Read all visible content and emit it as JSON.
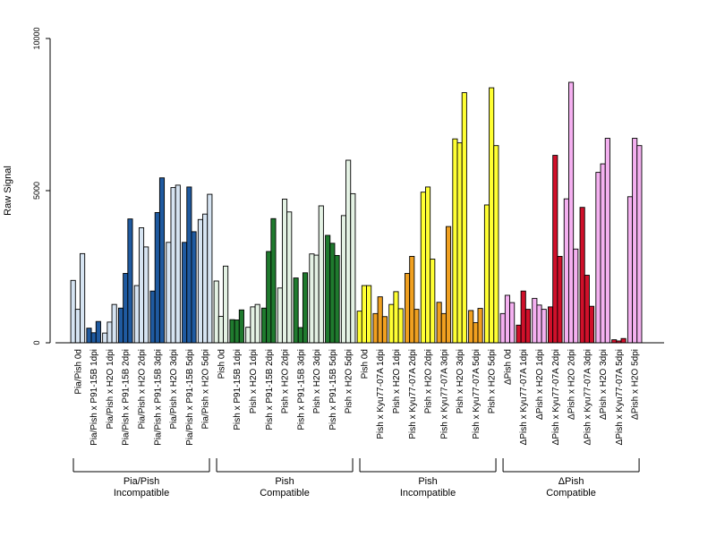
{
  "chart_data": {
    "type": "bar",
    "title": "",
    "xlabel": "",
    "ylabel": "Raw Signal",
    "ylim": [
      0,
      10000
    ],
    "yticks": [
      0,
      5000,
      10000
    ],
    "grid": false,
    "legend": "none",
    "bar_color_default": "#ffffff",
    "categories": [
      {
        "label": "Pia/Pish 0d",
        "values": [
          2050,
          1100,
          2930
        ],
        "color": "#d6e4f2"
      },
      {
        "label": "Pia/Pish x P91-15B 1dpi",
        "values": [
          480,
          330,
          700
        ],
        "color": "#1f5aa0"
      },
      {
        "label": "Pia/Pish x H2O 1dpi",
        "values": [
          320,
          680,
          1260
        ],
        "color": "#d6e4f2"
      },
      {
        "label": "Pia/Pish x P91-15B 2dpi",
        "values": [
          1140,
          2280,
          4070
        ],
        "color": "#1f5aa0"
      },
      {
        "label": "Pia/Pish x H2O 2dpi",
        "values": [
          1880,
          3780,
          3150
        ],
        "color": "#d6e4f2"
      },
      {
        "label": "Pia/Pish x P91-15B 3dpi",
        "values": [
          1700,
          4280,
          5420
        ],
        "color": "#1f5aa0"
      },
      {
        "label": "Pia/Pish x H2O 3dpi",
        "values": [
          3300,
          5100,
          5180
        ],
        "color": "#d6e4f2"
      },
      {
        "label": "Pia/Pish x P91-15B 5dpi",
        "values": [
          3300,
          5120,
          3650
        ],
        "color": "#1f5aa0"
      },
      {
        "label": "Pia/Pish x H2O 5dpi",
        "values": [
          4050,
          4230,
          4880
        ],
        "color": "#d6e4f2"
      },
      {
        "label": "Pish 0d",
        "values": [
          2030,
          870,
          2520
        ],
        "color": "#e4f2e4"
      },
      {
        "label": "Pish x P91-15B 1dpi",
        "values": [
          760,
          750,
          1080
        ],
        "color": "#1f7a2e"
      },
      {
        "label": "Pish x H2O 1dpi",
        "values": [
          510,
          1180,
          1260
        ],
        "color": "#e4f2e4"
      },
      {
        "label": "Pish x P91-15B 2dpi",
        "values": [
          1140,
          3000,
          4080
        ],
        "color": "#1f7a2e"
      },
      {
        "label": "Pish x H2O 2dpi",
        "values": [
          1800,
          4720,
          4300
        ],
        "color": "#e4f2e4"
      },
      {
        "label": "Pish x P91-15B 3dpi",
        "values": [
          2130,
          500,
          2300
        ],
        "color": "#1f7a2e"
      },
      {
        "label": "Pish x H2O 3dpi",
        "values": [
          2920,
          2880,
          4500
        ],
        "color": "#e4f2e4"
      },
      {
        "label": "Pish x P91-15B 5dpi",
        "values": [
          3530,
          3270,
          2870
        ],
        "color": "#1f7a2e"
      },
      {
        "label": "Pish x H2O 5dpi",
        "values": [
          4180,
          6000,
          4900
        ],
        "color": "#e4f2e4"
      },
      {
        "label": "Pish 0d",
        "values": [
          1040,
          1880,
          1880
        ],
        "color": "#ffff33"
      },
      {
        "label": "Pish x Kyu77-07A 1dpi",
        "values": [
          960,
          1510,
          860
        ],
        "color": "#f0a020"
      },
      {
        "label": "Pish x H2O 1dpi",
        "values": [
          1260,
          1680,
          1120
        ],
        "color": "#ffff33"
      },
      {
        "label": "Pish x Kyu77-07A 2dpi",
        "values": [
          2280,
          2840,
          1100
        ],
        "color": "#f0a020"
      },
      {
        "label": "Pish x H2O 2dpi",
        "values": [
          4950,
          5120,
          2750
        ],
        "color": "#ffff33"
      },
      {
        "label": "Pish x Kyu77-07A 3dpi",
        "values": [
          1330,
          960,
          3820
        ],
        "color": "#f0a020"
      },
      {
        "label": "Pish x H2O 3dpi",
        "values": [
          6700,
          6570,
          8220
        ],
        "color": "#ffff33"
      },
      {
        "label": "Pish x Kyu77-07A 5dpi",
        "values": [
          1060,
          660,
          1130
        ],
        "color": "#f0a020"
      },
      {
        "label": "Pish x H2O 5dpi",
        "values": [
          4530,
          8380,
          6480
        ],
        "color": "#ffff33"
      },
      {
        "label": "ΔPish 0d",
        "values": [
          960,
          1560,
          1320
        ],
        "color": "#f4b0f0"
      },
      {
        "label": "ΔPish x Kyu77-07A 1dpi",
        "values": [
          580,
          1700,
          1100
        ],
        "color": "#d0102a"
      },
      {
        "label": "ΔPish x H2O 1dpi",
        "values": [
          1460,
          1240,
          1100
        ],
        "color": "#f4b0f0"
      },
      {
        "label": "ΔPish x Kyu77-07A 2dpi",
        "values": [
          1180,
          6160,
          2840
        ],
        "color": "#d0102a"
      },
      {
        "label": "ΔPish x H2O 2dpi",
        "values": [
          4730,
          8560,
          3080
        ],
        "color": "#f4b0f0"
      },
      {
        "label": "ΔPish x Kyu77-07A 3dpi",
        "values": [
          4450,
          2220,
          1200
        ],
        "color": "#d0102a"
      },
      {
        "label": "ΔPish x H2O 3dpi",
        "values": [
          5600,
          5880,
          6720
        ],
        "color": "#f4b0f0"
      },
      {
        "label": "ΔPish x Kyu77-07A 5dpi",
        "values": [
          100,
          60,
          140
        ],
        "color": "#d0102a"
      },
      {
        "label": "ΔPish x H2O 5dpi",
        "values": [
          4800,
          6720,
          6480
        ],
        "color": "#f4b0f0"
      }
    ],
    "groups": [
      {
        "label_line1": "Pia/Pish",
        "label_line2": "Incompatible",
        "start": 0,
        "end": 8
      },
      {
        "label_line1": "Pish",
        "label_line2": "Compatible",
        "start": 9,
        "end": 17
      },
      {
        "label_line1": "Pish",
        "label_line2": "Incompatible",
        "start": 18,
        "end": 26
      },
      {
        "label_line1": "ΔPish",
        "label_line2": "Compatible",
        "start": 27,
        "end": 35
      }
    ]
  }
}
